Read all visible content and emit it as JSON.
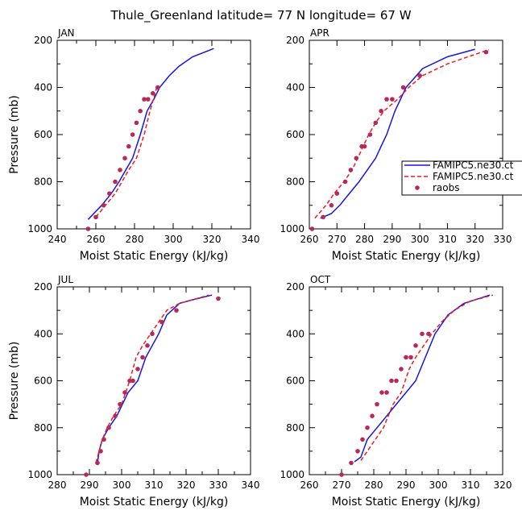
{
  "title": "Thule_Greenland  latitude= 77 N longitude= 67 W",
  "legend": {
    "entries": [
      {
        "label": "FAMIPC5.ne30.ct",
        "style": "solid",
        "color": "#1515e0"
      },
      {
        "label": "FAMIPC5.ne30.ct",
        "style": "dashed",
        "color": "#ee1c1c"
      },
      {
        "label": "raobs",
        "style": "dots",
        "color": "#b8285a"
      }
    ]
  },
  "chart_data": [
    {
      "type": "line",
      "panel_label": "JAN",
      "xlabel": "Moist Static Energy (kJ/kg)",
      "ylabel": "Pressure (mb)",
      "xlim": [
        240,
        340
      ],
      "ylim": [
        1000,
        200
      ],
      "xticks": [
        240,
        250,
        260,
        270,
        280,
        290,
        300,
        310,
        320,
        330,
        340
      ],
      "xtick_labels": [
        "240",
        "260",
        "280",
        "300",
        "320",
        "340"
      ],
      "ytick_labels": [
        "200",
        "400",
        "600",
        "800",
        "1000"
      ],
      "series": [
        {
          "style": "solid",
          "color": "#1515e0",
          "x": [
            256,
            263,
            268,
            272,
            275.5,
            279,
            283,
            286.5,
            290,
            293,
            298,
            303,
            310,
            321
          ],
          "p": [
            960,
            900,
            850,
            800,
            750,
            700,
            600,
            500,
            450,
            400,
            350,
            310,
            270,
            235
          ]
        },
        {
          "style": "dashed",
          "color": "#ee1c1c",
          "x": [
            260,
            265,
            270,
            273.5,
            277,
            281,
            285,
            288,
            291.5
          ],
          "p": [
            950,
            900,
            850,
            800,
            750,
            700,
            600,
            500,
            400
          ]
        },
        {
          "style": "dots",
          "color": "#b8285a",
          "x": [
            256,
            260,
            264,
            267,
            270,
            272.5,
            275,
            277,
            279,
            281,
            283,
            285,
            287,
            289.5,
            292
          ],
          "p": [
            1000,
            950,
            900,
            850,
            800,
            750,
            700,
            650,
            600,
            550,
            500,
            450,
            450,
            425,
            400
          ]
        }
      ]
    },
    {
      "type": "line",
      "panel_label": "APR",
      "xlabel": "Moist Static Energy (kJ/kg)",
      "ylabel": "",
      "xlim": [
        260,
        330
      ],
      "ylim": [
        1000,
        200
      ],
      "xticks": [
        260,
        270,
        280,
        290,
        300,
        310,
        320,
        330
      ],
      "xtick_labels": [
        "260",
        "270",
        "280",
        "290",
        "300",
        "310",
        "320",
        "330"
      ],
      "ytick_labels": [
        "200",
        "400",
        "600",
        "800",
        "1000"
      ],
      "series": [
        {
          "style": "solid",
          "color": "#1515e0",
          "x": [
            264,
            268,
            271,
            274.5,
            278,
            281,
            284,
            286,
            288,
            291,
            295,
            301,
            310,
            320
          ],
          "p": [
            955,
            935,
            900,
            850,
            800,
            750,
            700,
            650,
            600,
            500,
            400,
            320,
            270,
            238
          ]
        },
        {
          "style": "dashed",
          "color": "#ee1c1c",
          "x": [
            262,
            266,
            269,
            272.5,
            275.5,
            277.5,
            279.5,
            281.5,
            284,
            287,
            292,
            296,
            301,
            310,
            320,
            325
          ],
          "p": [
            955,
            900,
            850,
            800,
            750,
            700,
            650,
            600,
            550,
            500,
            450,
            400,
            350,
            300,
            260,
            240
          ]
        },
        {
          "style": "dots",
          "color": "#b8285a",
          "x": [
            261,
            265,
            268,
            270,
            273,
            275,
            277,
            279,
            280,
            282,
            284,
            286,
            288,
            290,
            294,
            300,
            324
          ],
          "p": [
            1000,
            950,
            900,
            850,
            800,
            750,
            700,
            650,
            650,
            600,
            550,
            500,
            450,
            450,
            400,
            350,
            250
          ]
        }
      ]
    },
    {
      "type": "line",
      "panel_label": "JUL",
      "xlabel": "Moist Static Energy (kJ/kg)",
      "ylabel": "Pressure (mb)",
      "xlim": [
        280,
        340
      ],
      "ylim": [
        1000,
        200
      ],
      "xticks": [
        280,
        285,
        290,
        295,
        300,
        305,
        310,
        315,
        320,
        325,
        330,
        335,
        340
      ],
      "xtick_labels": [
        "280",
        "290",
        "300",
        "310",
        "320",
        "330",
        "340"
      ],
      "ytick_labels": [
        "200",
        "400",
        "600",
        "800",
        "1000"
      ],
      "series": [
        {
          "style": "solid",
          "color": "#1515e0",
          "x": [
            292.5,
            293,
            294,
            296,
            298.5,
            302,
            305,
            307.5,
            309.5,
            311.5,
            314,
            318,
            322,
            328
          ],
          "p": [
            950,
            900,
            850,
            800,
            750,
            650,
            600,
            500,
            450,
            400,
            320,
            270,
            255,
            235
          ]
        },
        {
          "style": "dashed",
          "color": "#ee1c1c",
          "x": [
            292,
            293,
            294,
            295.5,
            297.5,
            300,
            302.5,
            304.5,
            306.5,
            309,
            311.5,
            314,
            318,
            322,
            327
          ],
          "p": [
            950,
            900,
            850,
            800,
            750,
            700,
            600,
            500,
            450,
            400,
            350,
            300,
            270,
            255,
            235
          ]
        },
        {
          "style": "dots",
          "color": "#b8285a",
          "x": [
            289,
            292.5,
            293.5,
            294.5,
            296,
            298,
            299.5,
            301,
            302.5,
            303.5,
            305,
            306.5,
            308,
            309.5,
            312.5,
            317,
            330
          ],
          "p": [
            1000,
            950,
            900,
            850,
            800,
            750,
            700,
            650,
            600,
            600,
            550,
            500,
            450,
            400,
            350,
            300,
            250
          ]
        }
      ]
    },
    {
      "type": "line",
      "panel_label": "OCT",
      "xlabel": "Moist Static Energy (kJ/kg)",
      "ylabel": "",
      "xlim": [
        260,
        320
      ],
      "ylim": [
        1000,
        200
      ],
      "xticks": [
        260,
        265,
        270,
        275,
        280,
        285,
        290,
        295,
        300,
        305,
        310,
        315,
        320
      ],
      "xtick_labels": [
        "260",
        "270",
        "280",
        "290",
        "300",
        "310",
        "320"
      ],
      "ytick_labels": [
        "200",
        "400",
        "600",
        "800",
        "1000"
      ],
      "series": [
        {
          "style": "solid",
          "color": "#1515e0",
          "x": [
            274,
            276,
            278,
            281,
            284,
            287,
            290,
            293,
            296,
            299,
            303,
            308,
            316
          ],
          "p": [
            945,
            925,
            850,
            800,
            750,
            700,
            650,
            600,
            500,
            400,
            320,
            270,
            235
          ]
        },
        {
          "style": "dashed",
          "color": "#ee1c1c",
          "x": [
            276,
            279,
            283,
            286,
            288.5,
            291,
            293,
            295.5,
            298,
            301,
            305,
            310,
            317
          ],
          "p": [
            940,
            880,
            800,
            700,
            650,
            550,
            500,
            450,
            400,
            350,
            300,
            260,
            235
          ]
        },
        {
          "style": "dots",
          "color": "#b8285a",
          "x": [
            270,
            273,
            275,
            276.5,
            278,
            279.5,
            281,
            282.5,
            284,
            285.5,
            287,
            288.5,
            290,
            291.5,
            293,
            295,
            297
          ],
          "p": [
            1000,
            950,
            900,
            850,
            800,
            750,
            700,
            650,
            650,
            600,
            600,
            550,
            500,
            500,
            450,
            400,
            400
          ]
        }
      ]
    }
  ]
}
